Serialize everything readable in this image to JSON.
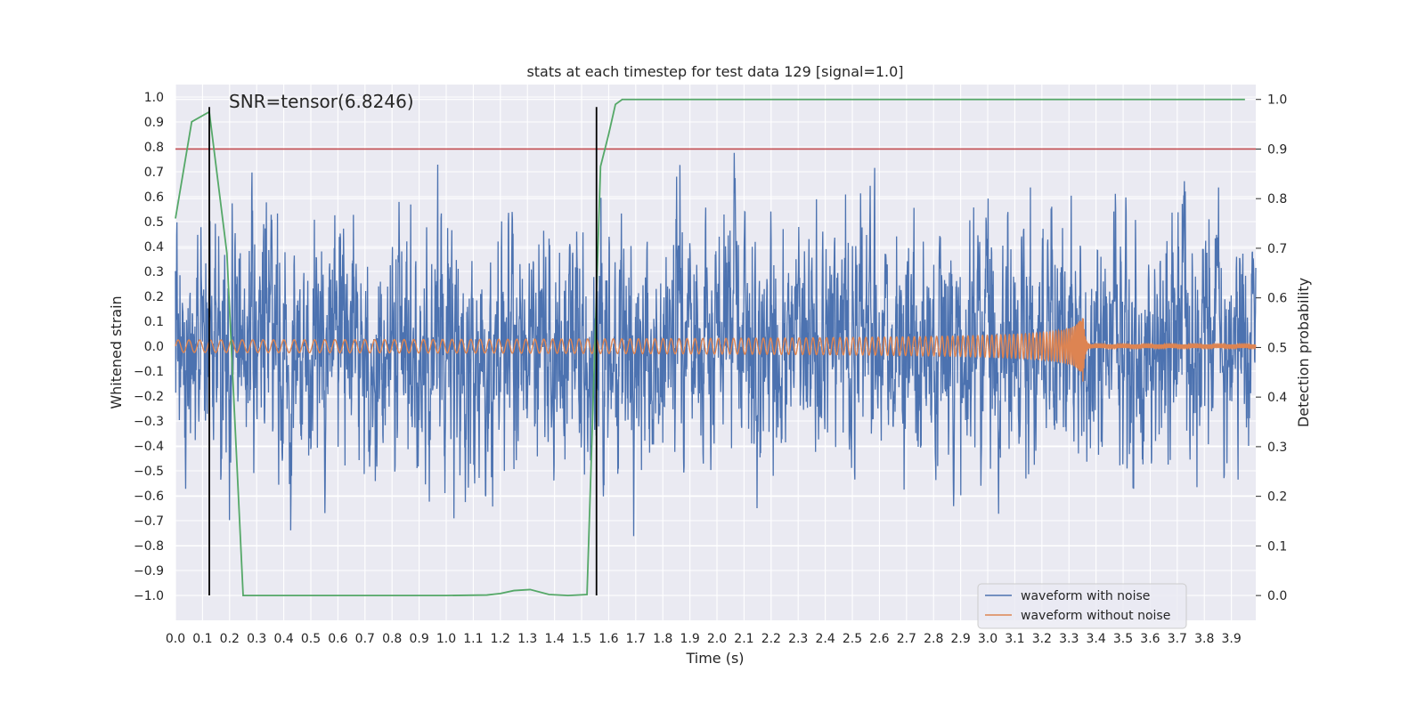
{
  "chart_data": {
    "type": "line",
    "title": "stats at each timestep for test data 129 [signal=1.0]",
    "xlabel": "Time (s)",
    "ylabel_left": "Whitened strain",
    "ylabel_right": "Detection probability",
    "xlim": [
      0.0,
      3.99
    ],
    "ylim_left": [
      -1.1,
      1.05
    ],
    "ylim_right": [
      -0.05,
      1.03
    ],
    "x_ticks": [
      0.0,
      0.1,
      0.2,
      0.3,
      0.4,
      0.5,
      0.6,
      0.7,
      0.8,
      0.9,
      1.0,
      1.1,
      1.2,
      1.3,
      1.4,
      1.5,
      1.6,
      1.7,
      1.8,
      1.9,
      2.0,
      2.1,
      2.2,
      2.3,
      2.4,
      2.5,
      2.6,
      2.7,
      2.8,
      2.9,
      3.0,
      3.1,
      3.2,
      3.3,
      3.4,
      3.5,
      3.6,
      3.7,
      3.8,
      3.9
    ],
    "x_tick_labels": [
      "0.0",
      "0.1",
      "0.2",
      "0.3",
      "0.4",
      "0.5",
      "0.6",
      "0.7",
      "0.8",
      "0.9",
      "1.0",
      "1.1",
      "1.2",
      "1.3",
      "1.4",
      "1.5",
      "1.6",
      "1.7",
      "1.8",
      "1.9",
      "2.0",
      "2.1",
      "2.2",
      "2.3",
      "2.4",
      "2.5",
      "2.6",
      "2.7",
      "2.8",
      "2.9",
      "3.0",
      "3.1",
      "3.2",
      "3.3",
      "3.4",
      "3.5",
      "3.6",
      "3.7",
      "3.8",
      "3.9"
    ],
    "y_left_ticks": [
      1.0,
      0.9,
      0.8,
      0.7,
      0.6,
      0.5,
      0.4,
      0.3,
      0.2,
      0.1,
      0.0,
      -0.1,
      -0.2,
      -0.3,
      -0.4,
      -0.5,
      -0.6,
      -0.7,
      -0.8,
      -0.9,
      -1.0
    ],
    "y_left_tick_labels": [
      "1.0",
      "0.9",
      "0.8",
      "0.7",
      "0.6",
      "0.5",
      "0.4",
      "0.3",
      "0.2",
      "0.1",
      "0.0",
      "−0.1",
      "−0.2",
      "−0.3",
      "−0.4",
      "−0.5",
      "−0.6",
      "−0.7",
      "−0.8",
      "−0.9",
      "−1.0"
    ],
    "y_right_ticks": [
      1.0,
      0.9,
      0.8,
      0.7,
      0.6,
      0.5,
      0.4,
      0.3,
      0.2,
      0.1,
      0.0
    ],
    "y_right_tick_labels": [
      "1.0",
      "0.9",
      "0.8",
      "0.7",
      "0.6",
      "0.5",
      "0.4",
      "0.3",
      "0.2",
      "0.1",
      "0.0"
    ],
    "annotation": "SNR=tensor(6.8246)",
    "grid": true,
    "legend_position": "lower-right",
    "series": [
      {
        "name": "waveform with noise",
        "axis": "left",
        "color": "#4c72b0",
        "style": "noise",
        "amplitude_std": 0.24,
        "x_range": [
          0.0,
          3.99
        ]
      },
      {
        "name": "waveform without noise",
        "axis": "left",
        "color": "#dd8452",
        "style": "chirp",
        "amplitude_start": 0.025,
        "amplitude_peak": 0.19,
        "merger_time": 3.35,
        "post_merger_amplitude": 0.006,
        "x_range": [
          0.0,
          3.99
        ]
      },
      {
        "axis": "right",
        "color": "#55a868",
        "x": [
          0.0,
          0.06,
          0.125,
          0.19,
          0.25,
          0.31,
          0.4,
          1.0,
          1.15,
          1.2,
          1.25,
          1.31,
          1.38,
          1.45,
          1.52,
          1.57,
          1.6,
          1.625,
          1.65,
          1.7,
          2.5,
          3.95
        ],
        "y": [
          0.76,
          0.955,
          0.975,
          0.69,
          0.0,
          0.0,
          0.0,
          0.0,
          0.001,
          0.004,
          0.01,
          0.012,
          0.002,
          0.0,
          0.002,
          0.865,
          0.93,
          0.99,
          1.0,
          1.0,
          1.0,
          1.0
        ]
      },
      {
        "axis": "right",
        "color": "#c44e52",
        "style": "hline",
        "y": 0.9
      },
      {
        "color": "#000000",
        "style": "vline",
        "x": [
          0.125,
          1.555
        ],
        "y_left_range": [
          -1.0,
          0.96
        ]
      }
    ]
  }
}
